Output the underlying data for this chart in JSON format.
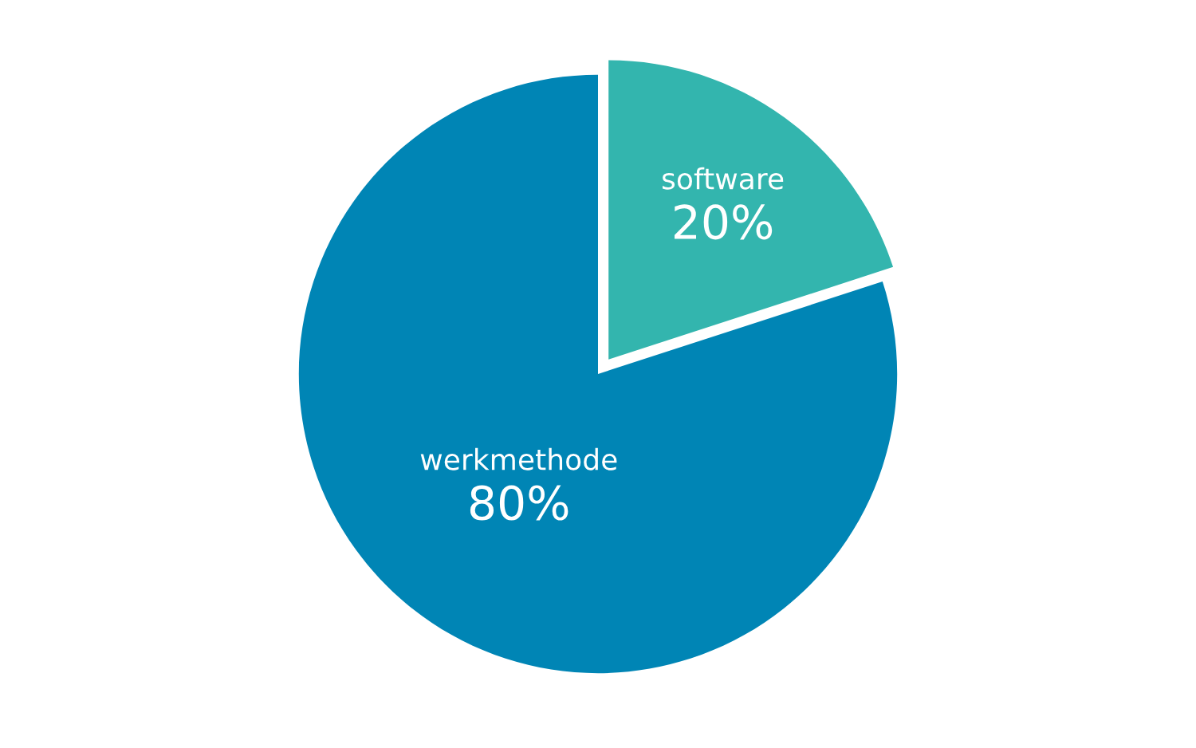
{
  "chart_data": {
    "type": "pie",
    "categories": [
      "software",
      "werkmethode"
    ],
    "values": [
      20,
      80
    ],
    "colors": [
      "#33b5ae",
      "#0085b5"
    ],
    "value_labels": [
      "20%",
      "80%"
    ],
    "legend": false
  }
}
